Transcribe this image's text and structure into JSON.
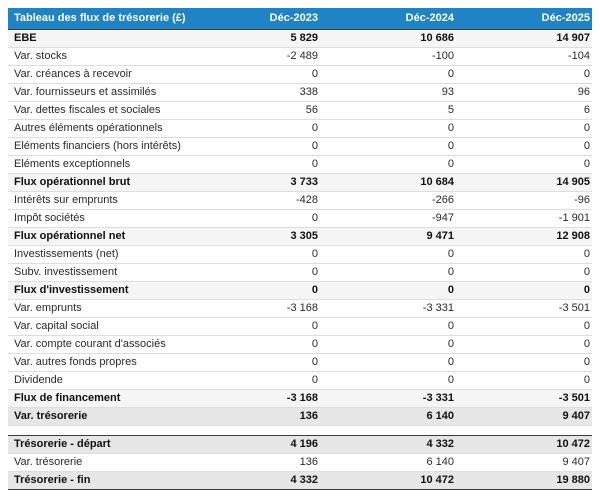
{
  "colors": {
    "header_bg": "#1e84c6",
    "header_text": "#ffffff",
    "subtotal_bg": "#f5f5f5",
    "total_bg": "#e6e6e6",
    "dark_border": "#3c3c3c",
    "row_separator": "#dedede"
  },
  "table": {
    "title": "Tableau des flux de trésorerie (£)",
    "columns": [
      "Déc-2023",
      "Déc-2024",
      "Déc-2025"
    ],
    "rows": [
      {
        "label": "EBE",
        "values": [
          "5 829",
          "10 686",
          "14 907"
        ],
        "style": "subtotal"
      },
      {
        "label": "Var. stocks",
        "values": [
          "-2 489",
          "-100",
          "-104"
        ],
        "style": "normal"
      },
      {
        "label": "Var. créances à recevoir",
        "values": [
          "0",
          "0",
          "0"
        ],
        "style": "normal"
      },
      {
        "label": "Var. fournisseurs et assimilés",
        "values": [
          "338",
          "93",
          "96"
        ],
        "style": "normal"
      },
      {
        "label": "Var. dettes fiscales et sociales",
        "values": [
          "56",
          "5",
          "6"
        ],
        "style": "normal"
      },
      {
        "label": "Autres éléments opérationnels",
        "values": [
          "0",
          "0",
          "0"
        ],
        "style": "normal"
      },
      {
        "label": "Eléments financiers (hors intérêts)",
        "values": [
          "0",
          "0",
          "0"
        ],
        "style": "normal"
      },
      {
        "label": "Eléments exceptionnels",
        "values": [
          "0",
          "0",
          "0"
        ],
        "style": "normal"
      },
      {
        "label": "Flux opérationnel brut",
        "values": [
          "3 733",
          "10 684",
          "14 905"
        ],
        "style": "subtotal"
      },
      {
        "label": "Intérêts sur emprunts",
        "values": [
          "-428",
          "-266",
          "-96"
        ],
        "style": "normal"
      },
      {
        "label": "Impôt sociétés",
        "values": [
          "0",
          "-947",
          "-1 901"
        ],
        "style": "normal"
      },
      {
        "label": "Flux opérationnel net",
        "values": [
          "3 305",
          "9 471",
          "12 908"
        ],
        "style": "subtotal"
      },
      {
        "label": "Investissements (net)",
        "values": [
          "0",
          "0",
          "0"
        ],
        "style": "normal"
      },
      {
        "label": "Subv. investissement",
        "values": [
          "0",
          "0",
          "0"
        ],
        "style": "normal"
      },
      {
        "label": "Flux d'investissement",
        "values": [
          "0",
          "0",
          "0"
        ],
        "style": "subtotal"
      },
      {
        "label": "Var. emprunts",
        "values": [
          "-3 168",
          "-3 331",
          "-3 501"
        ],
        "style": "normal"
      },
      {
        "label": "Var. capital social",
        "values": [
          "0",
          "0",
          "0"
        ],
        "style": "normal"
      },
      {
        "label": "Var. compte courant d'associés",
        "values": [
          "0",
          "0",
          "0"
        ],
        "style": "normal"
      },
      {
        "label": "Var. autres fonds propres",
        "values": [
          "0",
          "0",
          "0"
        ],
        "style": "normal"
      },
      {
        "label": "Dividende",
        "values": [
          "0",
          "0",
          "0"
        ],
        "style": "normal"
      },
      {
        "label": "Flux de financement",
        "values": [
          "-3 168",
          "-3 331",
          "-3 501"
        ],
        "style": "subtotal"
      },
      {
        "label": "Var. trésorerie",
        "values": [
          "136",
          "6 140",
          "9 407"
        ],
        "style": "total"
      },
      {
        "label": "",
        "values": [
          "",
          "",
          ""
        ],
        "style": "spacer"
      },
      {
        "label": "Trésorerie - départ",
        "values": [
          "4 196",
          "4 332",
          "10 472"
        ],
        "style": "total-open"
      },
      {
        "label": "Var. trésorerie",
        "values": [
          "136",
          "6 140",
          "9 407"
        ],
        "style": "normal"
      },
      {
        "label": "Trésorerie - fin",
        "values": [
          "4 332",
          "10 472",
          "19 880"
        ],
        "style": "total-close"
      }
    ]
  }
}
